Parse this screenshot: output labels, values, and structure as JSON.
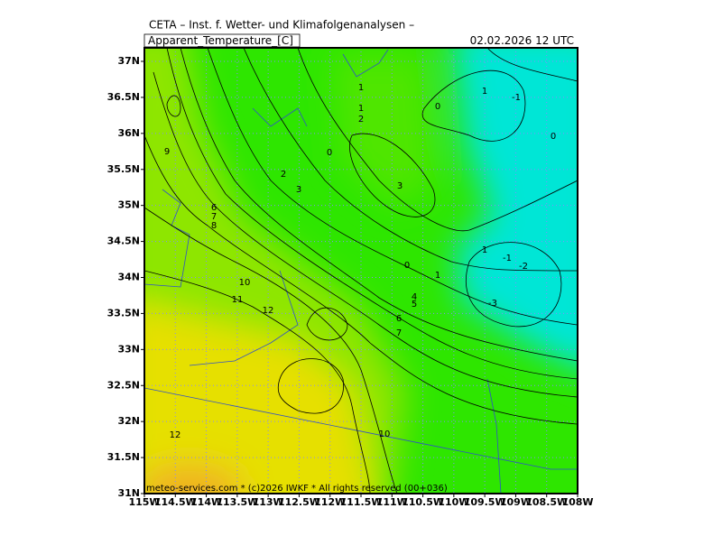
{
  "header": {
    "title": "CETA – Inst. f. Wetter- und Klimafolgenanalysen –",
    "parameter": "Apparent_Temperature_[C]",
    "datetime": "02.02.2026 12 UTC"
  },
  "map": {
    "lat_labels": [
      "37N",
      "36.5N",
      "36N",
      "35.5N",
      "35N",
      "34.5N",
      "34N",
      "33.5N",
      "33N",
      "32.5N",
      "32N",
      "31.5N",
      "31N"
    ],
    "lon_labels": [
      "115W",
      "114.5W",
      "114W",
      "113.5W",
      "113W",
      "112.5W",
      "112W",
      "111.5W",
      "111W",
      "110.5W",
      "110W",
      "109.5W",
      "109W",
      "108.5W",
      "108W"
    ],
    "contour_labels": [
      "1",
      "1",
      "2",
      "0",
      "1",
      "-1",
      "0",
      "9",
      "0",
      "2",
      "3",
      "3",
      "6",
      "7",
      "8",
      "1",
      "-1",
      "-2",
      "0",
      "1",
      "10",
      "4",
      "5",
      "11",
      "-3",
      "12",
      "6",
      "7",
      "10",
      "12"
    ]
  },
  "footer": {
    "copyright": "meteo-services.com * (c)2026 IWKF * All rights reserved (00+036)"
  }
}
